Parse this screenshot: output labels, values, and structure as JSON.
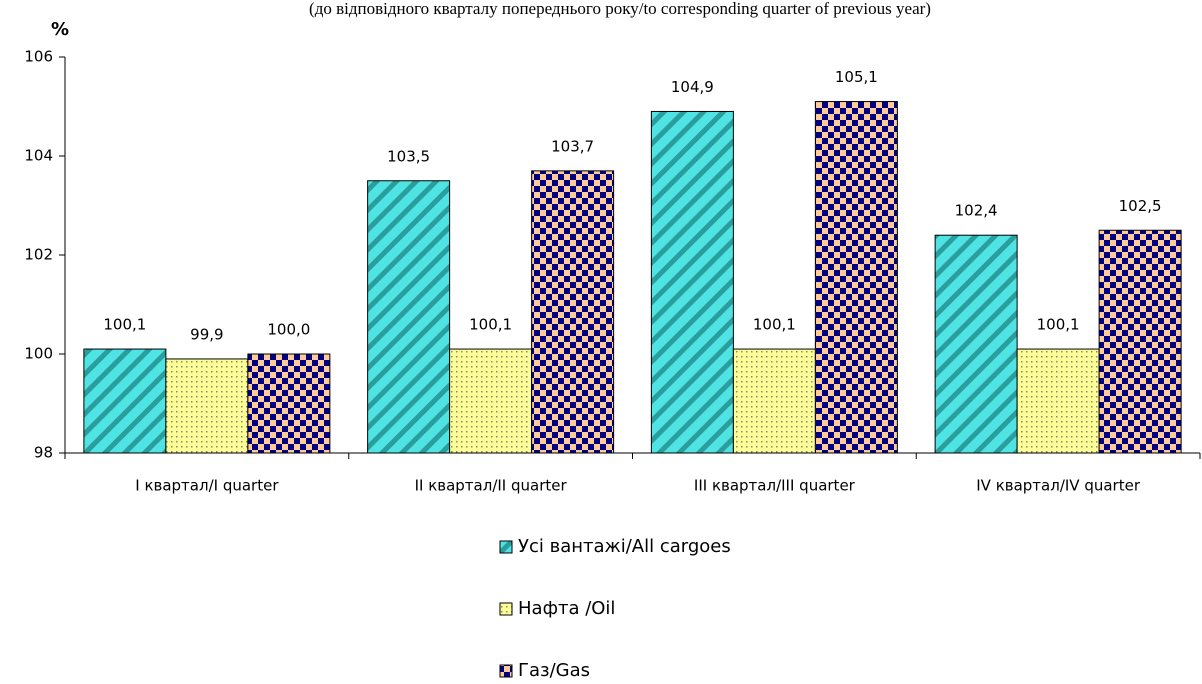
{
  "chart_data": {
    "type": "bar",
    "subtitle": "(до відповідного кварталу попереднього року/to corresponding quarter of previous year)",
    "y_label": "%",
    "categories": [
      "I квартал/I quarter",
      "II квартал/II quarter",
      "III квартал/III quarter",
      "IV квартал/IV quarter"
    ],
    "series": [
      {
        "name": "Усі вантажі/All cargoes",
        "color": "#4fe3e3",
        "pattern": "diagonal",
        "values": [
          100.1,
          103.5,
          104.9,
          102.4
        ],
        "value_labels": [
          "100,1",
          "103,5",
          "104,9",
          "102,4"
        ]
      },
      {
        "name": "Нафта /Oil",
        "color": "#ffff99",
        "pattern": "dots",
        "values": [
          99.9,
          100.1,
          100.1,
          100.1
        ],
        "value_labels": [
          "99,9",
          "100,1",
          "100,1",
          "100,1"
        ]
      },
      {
        "name": "Газ/Gas",
        "color": "#ffcc99",
        "pattern": "checker",
        "values": [
          100.0,
          103.7,
          105.1,
          102.5
        ],
        "value_labels": [
          "100,0",
          "103,7",
          "105,1",
          "102,5"
        ]
      }
    ],
    "ylim": [
      98,
      106
    ],
    "yticks": [
      98,
      100,
      102,
      104,
      106
    ],
    "legend": "bottom"
  }
}
